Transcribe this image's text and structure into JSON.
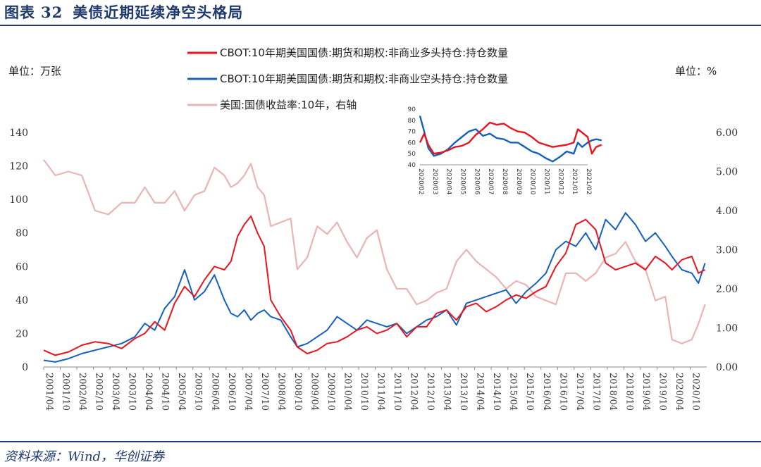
{
  "header": {
    "figure_label": "图表",
    "figure_number": "32",
    "title": "美债近期延续净空头格局"
  },
  "footer": {
    "source": "资料来源：Wind，华创证券"
  },
  "colors": {
    "long": "#e8141e",
    "short": "#1560bd",
    "yield": "#eab4b4",
    "accent": "#1f3b6e"
  },
  "chart_data": [
    {
      "type": "line",
      "y_unit_label": "单位：万张",
      "y2_unit_label": "单位：%",
      "ylim": [
        0,
        140
      ],
      "yticks": [
        "0",
        "20",
        "40",
        "60",
        "80",
        "100",
        "120",
        "140"
      ],
      "y2lim": [
        0,
        6
      ],
      "y2ticks": [
        "0.00",
        "1.00",
        "2.00",
        "3.00",
        "4.00",
        "5.00",
        "6.00"
      ],
      "x_range": [
        2001.25,
        2021.25
      ],
      "xticks": [
        "2001/04",
        "2001/10",
        "2002/04",
        "2002/10",
        "2003/04",
        "2003/10",
        "2004/04",
        "2004/10",
        "2005/04",
        "2005/10",
        "2006/04",
        "2006/10",
        "2007/04",
        "2007/10",
        "2008/04",
        "2008/10",
        "2009/04",
        "2009/10",
        "2010/04",
        "2010/10",
        "2011/04",
        "2011/10",
        "2012/04",
        "2012/10",
        "2013/04",
        "2013/10",
        "2014/04",
        "2014/10",
        "2015/04",
        "2015/10",
        "2016/04",
        "2016/10",
        "2017/04",
        "2017/10",
        "2018/04",
        "2018/10",
        "2019/04",
        "2019/10",
        "2020/04",
        "2020/10"
      ],
      "legend_position": "top-center",
      "series": [
        {
          "name": "CBOT:10年期美国国债:期货和期权:非商业多头持仓:持仓数量",
          "axis": "left",
          "color": "#e8141e",
          "x": [
            2001.25,
            2001.6,
            2002.0,
            2002.4,
            2002.8,
            2003.2,
            2003.6,
            2004.0,
            2004.3,
            2004.6,
            2004.9,
            2005.2,
            2005.5,
            2005.8,
            2006.1,
            2006.4,
            2006.7,
            2006.9,
            2007.1,
            2007.3,
            2007.5,
            2007.7,
            2007.9,
            2008.1,
            2008.4,
            2008.7,
            2008.9,
            2009.2,
            2009.5,
            2009.8,
            2010.1,
            2010.4,
            2010.7,
            2011.0,
            2011.3,
            2011.6,
            2011.9,
            2012.2,
            2012.5,
            2012.8,
            2013.1,
            2013.4,
            2013.7,
            2014.0,
            2014.3,
            2014.6,
            2014.9,
            2015.2,
            2015.5,
            2015.8,
            2016.1,
            2016.4,
            2016.7,
            2017.0,
            2017.3,
            2017.6,
            2017.9,
            2018.2,
            2018.5,
            2018.8,
            2019.1,
            2019.4,
            2019.7,
            2020.0,
            2020.2,
            2020.5,
            2020.8,
            2021.0,
            2021.2
          ],
          "values": [
            10,
            7,
            9,
            13,
            15,
            14,
            11,
            17,
            20,
            27,
            22,
            38,
            48,
            42,
            52,
            60,
            58,
            63,
            78,
            85,
            90,
            80,
            72,
            40,
            30,
            22,
            12,
            8,
            10,
            14,
            15,
            18,
            22,
            24,
            20,
            22,
            26,
            18,
            24,
            24,
            32,
            34,
            28,
            36,
            38,
            33,
            36,
            40,
            43,
            41,
            45,
            48,
            60,
            68,
            85,
            88,
            82,
            62,
            58,
            60,
            62,
            58,
            66,
            62,
            58,
            64,
            66,
            56,
            58
          ]
        },
        {
          "name": "CBOT:10年期美国国债:期货和期权:非商业空头持仓:持仓数量",
          "axis": "left",
          "color": "#1560bd",
          "x": [
            2001.25,
            2001.6,
            2002.0,
            2002.4,
            2002.8,
            2003.2,
            2003.6,
            2004.0,
            2004.3,
            2004.6,
            2004.9,
            2005.2,
            2005.5,
            2005.8,
            2006.1,
            2006.4,
            2006.7,
            2006.9,
            2007.1,
            2007.3,
            2007.5,
            2007.7,
            2007.9,
            2008.1,
            2008.4,
            2008.7,
            2008.9,
            2009.2,
            2009.5,
            2009.8,
            2010.1,
            2010.4,
            2010.7,
            2011.0,
            2011.3,
            2011.6,
            2011.9,
            2012.2,
            2012.5,
            2012.8,
            2013.1,
            2013.4,
            2013.7,
            2014.0,
            2014.3,
            2014.6,
            2014.9,
            2015.2,
            2015.5,
            2015.8,
            2016.1,
            2016.4,
            2016.7,
            2017.0,
            2017.3,
            2017.6,
            2017.9,
            2018.2,
            2018.5,
            2018.8,
            2019.1,
            2019.4,
            2019.7,
            2020.0,
            2020.2,
            2020.5,
            2020.8,
            2021.0,
            2021.2
          ],
          "values": [
            4,
            3,
            5,
            8,
            10,
            12,
            14,
            18,
            26,
            22,
            35,
            42,
            58,
            40,
            45,
            55,
            40,
            32,
            30,
            34,
            28,
            32,
            34,
            30,
            28,
            18,
            12,
            14,
            18,
            22,
            30,
            26,
            22,
            28,
            26,
            24,
            26,
            20,
            24,
            28,
            30,
            34,
            25,
            38,
            40,
            42,
            44,
            46,
            38,
            45,
            50,
            56,
            70,
            75,
            72,
            80,
            70,
            88,
            82,
            92,
            85,
            75,
            80,
            72,
            66,
            58,
            56,
            50,
            62
          ]
        },
        {
          "name": "美国:国债收益率:10年，右轴",
          "axis": "right",
          "color": "#eab4b4",
          "x": [
            2001.25,
            2001.6,
            2002.0,
            2002.4,
            2002.8,
            2003.2,
            2003.6,
            2004.0,
            2004.3,
            2004.6,
            2004.9,
            2005.2,
            2005.5,
            2005.8,
            2006.1,
            2006.4,
            2006.7,
            2006.9,
            2007.1,
            2007.3,
            2007.5,
            2007.7,
            2007.9,
            2008.1,
            2008.4,
            2008.7,
            2008.9,
            2009.2,
            2009.5,
            2009.8,
            2010.1,
            2010.4,
            2010.7,
            2011.0,
            2011.3,
            2011.6,
            2011.9,
            2012.2,
            2012.5,
            2012.8,
            2013.1,
            2013.4,
            2013.7,
            2014.0,
            2014.3,
            2014.6,
            2014.9,
            2015.2,
            2015.5,
            2015.8,
            2016.1,
            2016.4,
            2016.7,
            2017.0,
            2017.3,
            2017.6,
            2017.9,
            2018.2,
            2018.5,
            2018.8,
            2019.1,
            2019.4,
            2019.7,
            2020.0,
            2020.2,
            2020.5,
            2020.8,
            2021.0,
            2021.2
          ],
          "values": [
            5.3,
            4.9,
            5.0,
            4.9,
            4.0,
            3.9,
            4.2,
            4.2,
            4.6,
            4.2,
            4.2,
            4.5,
            4.0,
            4.4,
            4.5,
            5.1,
            4.9,
            4.6,
            4.7,
            4.9,
            5.2,
            4.6,
            4.4,
            3.6,
            3.7,
            3.8,
            2.5,
            2.8,
            3.6,
            3.4,
            3.7,
            3.2,
            2.8,
            3.3,
            3.5,
            2.5,
            2.0,
            2.0,
            1.6,
            1.7,
            1.9,
            2.0,
            2.7,
            3.0,
            2.7,
            2.5,
            2.3,
            2.0,
            2.2,
            2.1,
            1.8,
            1.7,
            1.6,
            2.4,
            2.4,
            2.2,
            2.4,
            2.8,
            2.9,
            3.2,
            2.7,
            2.5,
            1.7,
            1.8,
            0.7,
            0.6,
            0.7,
            1.1,
            1.6
          ]
        }
      ]
    },
    {
      "type": "line",
      "title": "",
      "ylim": [
        40,
        90
      ],
      "yticks": [
        "40",
        "50",
        "60",
        "70",
        "80",
        "90"
      ],
      "xticks": [
        "2020/02",
        "2020/03",
        "2020/04",
        "2020/05",
        "2020/06",
        "2020/07",
        "2020/08",
        "2020/09",
        "2020/10",
        "2020/11",
        "2020/12",
        "2021/01",
        "2021/02"
      ],
      "series": [
        {
          "name": "",
          "color": "#e8141e",
          "x": [
            0,
            0.3,
            0.6,
            1.0,
            1.5,
            2.0,
            2.5,
            3.0,
            3.5,
            4.0,
            4.5,
            5.0,
            5.5,
            6.0,
            6.5,
            7.0,
            7.5,
            8.0,
            8.5,
            9.0,
            9.5,
            10.0,
            10.5,
            11.0,
            11.3,
            11.6,
            12.0,
            12.3,
            12.6,
            13.0
          ],
          "values": [
            60,
            68,
            58,
            50,
            51,
            53,
            56,
            57,
            60,
            67,
            72,
            78,
            76,
            77,
            73,
            70,
            69,
            65,
            60,
            58,
            56,
            57,
            58,
            60,
            72,
            69,
            65,
            50,
            56,
            58
          ]
        },
        {
          "name": "",
          "color": "#1560bd",
          "x": [
            0,
            0.3,
            0.6,
            1.0,
            1.5,
            2.0,
            2.5,
            3.0,
            3.5,
            4.0,
            4.5,
            5.0,
            5.5,
            6.0,
            6.5,
            7.0,
            7.5,
            8.0,
            8.5,
            9.0,
            9.5,
            10.0,
            10.5,
            11.0,
            11.3,
            11.6,
            12.0,
            12.3,
            12.6,
            13.0
          ],
          "values": [
            84,
            70,
            55,
            48,
            50,
            54,
            60,
            65,
            70,
            72,
            66,
            68,
            64,
            63,
            60,
            60,
            56,
            52,
            50,
            46,
            43,
            47,
            52,
            50,
            60,
            56,
            60,
            62,
            63,
            62
          ]
        }
      ]
    }
  ]
}
